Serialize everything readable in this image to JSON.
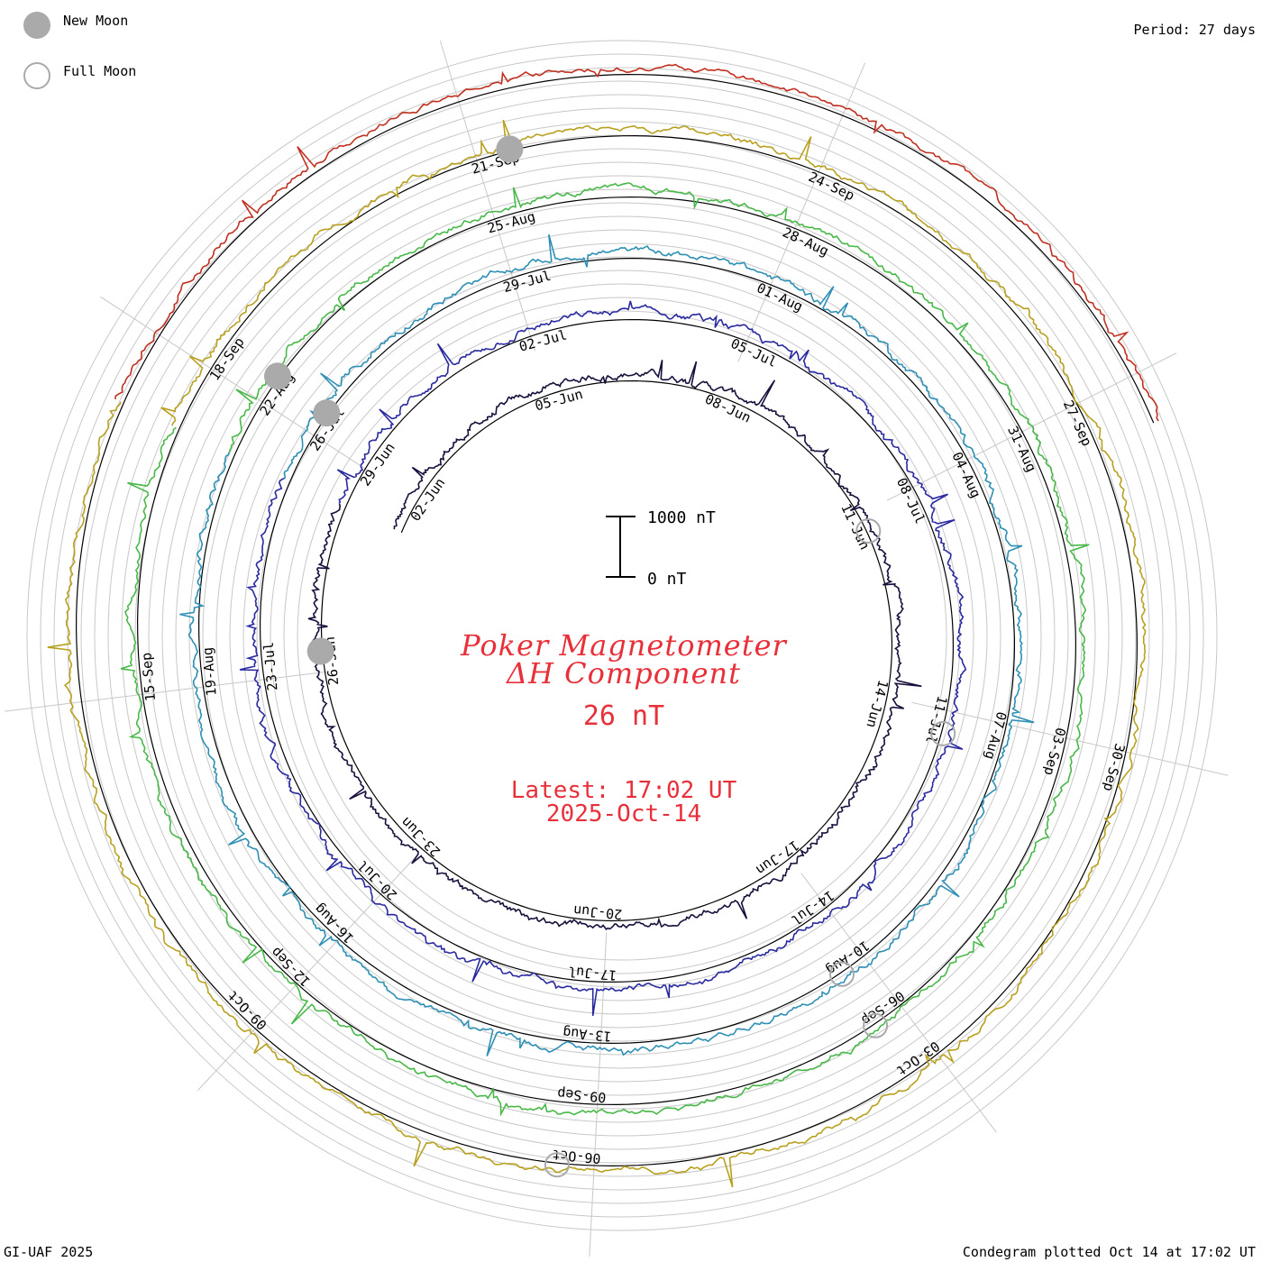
{
  "chart_data": {
    "type": "line",
    "title": "Poker Magnetometer",
    "subtitle": "ΔH Component",
    "current_value": "26 nT",
    "latest_time": "Latest: 17:02 UT",
    "latest_date": "2025-Oct-14",
    "period": "Period: 27 days",
    "scale_bar": {
      "top_label": "1000 nT",
      "bottom_label": "0 nT"
    },
    "legend": [
      {
        "label": "New Moon",
        "symbol": "filled-circle",
        "color": "#aaaaaa"
      },
      {
        "label": "Full Moon",
        "symbol": "open-circle",
        "color": "#aaaaaa"
      }
    ],
    "credit": "GI-UAF 2025",
    "footer": "Condegram plotted Oct 14 at 17:02 UT",
    "colors": {
      "title": "#e8303a",
      "grid": "#c8c8c8",
      "baseline": "#000000",
      "moon": "#aaaaaa"
    },
    "series": [
      {
        "name": "",
        "color": "#1a0f3c",
        "dates": [
          "02-Jun",
          "05-Jun",
          "08-Jun",
          "11-Jun",
          "14-Jun",
          "17-Jun",
          "20-Jun",
          "23-Jun",
          "26-Jun"
        ]
      },
      {
        "name": "",
        "color": "#2a2aa0",
        "dates": [
          "29-Jun",
          "02-Jul",
          "05-Jul",
          "08-Jul",
          "11-Jul",
          "14-Jul",
          "17-Jul",
          "20-Jul",
          "23-Jul"
        ]
      },
      {
        "name": "",
        "color": "#2e8fb5",
        "dates": [
          "26-Jul",
          "29-Jul",
          "01-Aug",
          "04-Aug",
          "07-Aug",
          "10-Aug",
          "13-Aug",
          "16-Aug",
          "19-Aug"
        ]
      },
      {
        "name": "",
        "color": "#48b848",
        "dates": [
          "22-Aug",
          "25-Aug",
          "28-Aug",
          "31-Aug",
          "03-Sep",
          "06-Sep",
          "09-Sep",
          "12-Sep",
          "15-Sep"
        ]
      },
      {
        "name": "",
        "color": "#b8a020",
        "dates": [
          "18-Sep",
          "21-Sep",
          "24-Sep",
          "27-Sep",
          "30-Sep",
          "03-Oct",
          "06-Oct",
          "09-Oct"
        ]
      },
      {
        "name": "",
        "color": "#c03020",
        "dates": []
      }
    ],
    "moon_markers": [
      {
        "type": "new",
        "near": "26-Jun"
      },
      {
        "type": "new",
        "near": "26-Jul"
      },
      {
        "type": "new",
        "near": "22-Aug"
      },
      {
        "type": "new",
        "near": "21-Sep"
      },
      {
        "type": "full",
        "near": "11-Jun"
      },
      {
        "type": "full",
        "near": "11-Jul"
      },
      {
        "type": "full",
        "near": "10-Aug"
      },
      {
        "type": "full",
        "near": "06-Sep"
      },
      {
        "type": "full",
        "near": "06-Oct"
      }
    ]
  }
}
